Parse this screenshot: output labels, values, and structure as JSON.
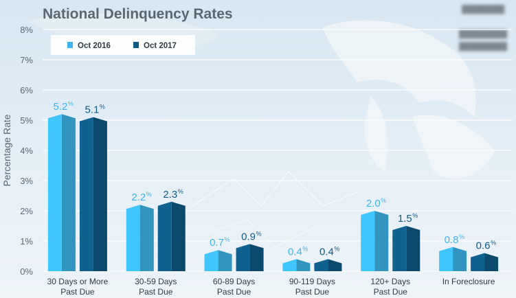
{
  "chart_data": {
    "type": "bar",
    "title": "National Delinquency Rates",
    "ylabel": "Percentage Rate",
    "xlabel": "",
    "ylim": [
      0,
      8
    ],
    "yticks": [
      "0%",
      "1%",
      "2%",
      "3%",
      "4%",
      "5%",
      "6%",
      "7%",
      "8%"
    ],
    "grid": true,
    "legend_position": "top-left",
    "categories": [
      [
        "30 Days or More",
        "Past Due"
      ],
      [
        "30-59 Days",
        "Past Due"
      ],
      [
        "60-89 Days",
        "Past Due"
      ],
      [
        "90-119 Days",
        "Past Due"
      ],
      [
        "120+ Days",
        "Past Due"
      ],
      [
        "In Foreclosure"
      ]
    ],
    "series": [
      {
        "name": "Oct 2016",
        "color": "#3cb6ea",
        "values": [
          5.2,
          2.2,
          0.7,
          0.4,
          2.0,
          0.8
        ],
        "labels": [
          "5.2",
          "2.2",
          "0.7",
          "0.4",
          "2.0",
          "0.8"
        ]
      },
      {
        "name": "Oct 2017",
        "color": "#0e5a85",
        "values": [
          5.1,
          2.3,
          0.9,
          0.4,
          1.5,
          0.6
        ],
        "labels": [
          "5.1",
          "2.3",
          "0.9",
          "0.4",
          "1.5",
          "0.6"
        ]
      }
    ],
    "value_suffix": "%"
  }
}
